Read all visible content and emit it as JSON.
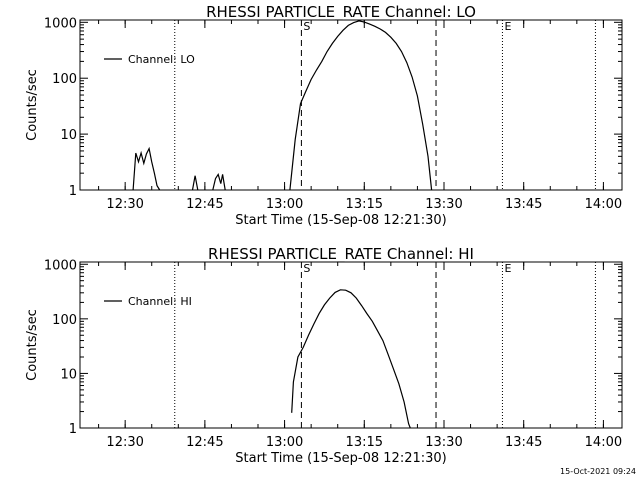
{
  "chart_data": [
    {
      "type": "line",
      "title": "RHESSI PARTICLE_RATE Channel: LO",
      "xlabel": "Start Time (15-Sep-08 12:21:30)",
      "ylabel": "Counts/sec",
      "y_scale": "log",
      "ylim": [
        1,
        1100
      ],
      "xlim": [
        "12:21:30",
        "14:03:30"
      ],
      "x_ticks": [
        "12:30",
        "12:45",
        "13:00",
        "13:15",
        "13:30",
        "13:45",
        "14:00"
      ],
      "y_ticks": [
        "1",
        "10",
        "100",
        "1000"
      ],
      "legend": "top-left",
      "grid": false,
      "markers": [
        {
          "time": "12:39:20",
          "style": "dotted",
          "label": ""
        },
        {
          "time": "13:03:10",
          "style": "dashed",
          "label": "S"
        },
        {
          "time": "13:28:30",
          "style": "dashed",
          "label": ""
        },
        {
          "time": "13:41:00",
          "style": "dotted",
          "label": "E"
        },
        {
          "time": "13:58:30",
          "style": "dotted",
          "label": ""
        }
      ],
      "series": [
        {
          "name": "Channel: LO",
          "segments": [
            [
              [
                "12:31:30",
                1
              ],
              [
                "12:32:00",
                4.6
              ],
              [
                "12:32:30",
                3.2
              ],
              [
                "12:33:00",
                4.6
              ],
              [
                "12:33:30",
                3.0
              ],
              [
                "12:34:00",
                4.4
              ],
              [
                "12:34:30",
                5.5
              ],
              [
                "12:35:00",
                3.2
              ],
              [
                "12:35:30",
                2.0
              ],
              [
                "12:36:00",
                1.2
              ],
              [
                "12:36:30",
                1
              ]
            ],
            [
              [
                "12:42:40",
                1
              ],
              [
                "12:43:10",
                1.8
              ],
              [
                "12:43:40",
                1
              ]
            ],
            [
              [
                "12:46:30",
                1
              ],
              [
                "12:47:00",
                1.6
              ],
              [
                "12:47:30",
                1.9
              ],
              [
                "12:48:00",
                1.3
              ],
              [
                "12:48:20",
                1.9
              ],
              [
                "12:48:50",
                1
              ]
            ],
            [
              [
                "13:01:00",
                1
              ],
              [
                "13:02:00",
                8
              ],
              [
                "13:03:00",
                35
              ],
              [
                "13:04:00",
                58
              ],
              [
                "13:05:00",
                95
              ],
              [
                "13:06:00",
                140
              ],
              [
                "13:07:00",
                200
              ],
              [
                "13:08:00",
                300
              ],
              [
                "13:09:00",
                420
              ],
              [
                "13:10:00",
                560
              ],
              [
                "13:11:00",
                720
              ],
              [
                "13:12:00",
                880
              ],
              [
                "13:13:00",
                990
              ],
              [
                "13:14:00",
                1060
              ],
              [
                "13:15:00",
                1010
              ],
              [
                "13:16:00",
                930
              ],
              [
                "13:17:00",
                850
              ],
              [
                "13:18:00",
                760
              ],
              [
                "13:19:00",
                660
              ],
              [
                "13:20:00",
                540
              ],
              [
                "13:21:00",
                420
              ],
              [
                "13:22:00",
                300
              ],
              [
                "13:23:00",
                190
              ],
              [
                "13:24:00",
                105
              ],
              [
                "13:25:00",
                48
              ],
              [
                "13:26:00",
                15
              ],
              [
                "13:27:00",
                4
              ],
              [
                "13:27:40",
                1
              ]
            ]
          ]
        }
      ]
    },
    {
      "type": "line",
      "title": "RHESSI PARTICLE_RATE Channel: HI",
      "xlabel": "Start Time (15-Sep-08 12:21:30)",
      "ylabel": "Counts/sec",
      "y_scale": "log",
      "ylim": [
        1,
        1100
      ],
      "xlim": [
        "12:21:30",
        "14:03:30"
      ],
      "x_ticks": [
        "12:30",
        "12:45",
        "13:00",
        "13:15",
        "13:30",
        "13:45",
        "14:00"
      ],
      "y_ticks": [
        "1",
        "10",
        "100",
        "1000"
      ],
      "legend": "top-left",
      "grid": false,
      "markers": [
        {
          "time": "12:39:20",
          "style": "dotted",
          "label": ""
        },
        {
          "time": "13:03:10",
          "style": "dashed",
          "label": "S"
        },
        {
          "time": "13:28:30",
          "style": "dashed",
          "label": ""
        },
        {
          "time": "13:41:00",
          "style": "dotted",
          "label": "E"
        },
        {
          "time": "13:58:30",
          "style": "dotted",
          "label": ""
        }
      ],
      "series": [
        {
          "name": "Channel: HI",
          "segments": [
            [
              [
                "13:01:20",
                1.9
              ],
              [
                "13:01:40",
                7
              ],
              [
                "13:02:30",
                20
              ],
              [
                "13:03:30",
                30
              ],
              [
                "13:04:30",
                50
              ],
              [
                "13:05:30",
                80
              ],
              [
                "13:06:30",
                125
              ],
              [
                "13:07:30",
                180
              ],
              [
                "13:08:30",
                240
              ],
              [
                "13:09:30",
                305
              ],
              [
                "13:10:30",
                340
              ],
              [
                "13:11:30",
                335
              ],
              [
                "13:12:30",
                300
              ],
              [
                "13:13:30",
                240
              ],
              [
                "13:14:30",
                175
              ],
              [
                "13:15:30",
                125
              ],
              [
                "13:16:30",
                90
              ],
              [
                "13:17:30",
                60
              ],
              [
                "13:18:30",
                40
              ],
              [
                "13:19:30",
                22
              ],
              [
                "13:20:30",
                12
              ],
              [
                "13:21:30",
                6.5
              ],
              [
                "13:22:30",
                3
              ],
              [
                "13:23:20",
                1.2
              ],
              [
                "13:23:40",
                1
              ]
            ]
          ]
        }
      ]
    }
  ],
  "footer": {
    "timestamp": "15-Oct-2021 09:24"
  },
  "style": {
    "background": "#ffffff",
    "foreground": "#000000"
  }
}
